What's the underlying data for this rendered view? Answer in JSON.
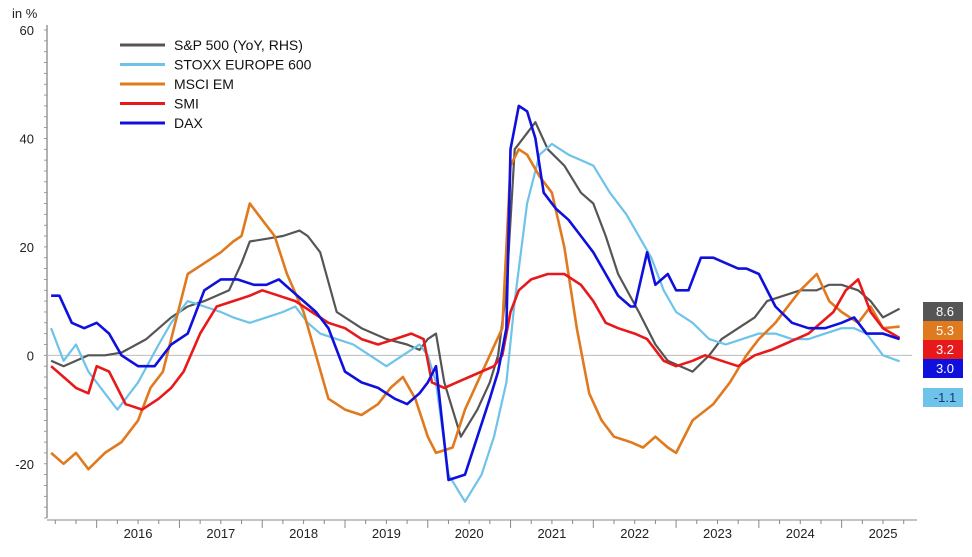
{
  "chart_data": {
    "type": "line",
    "ylabel": "in %",
    "ylim": [
      -30,
      60
    ],
    "yticks": [
      -20,
      0,
      20,
      40,
      60
    ],
    "xlim": [
      2015.4,
      2025.85
    ],
    "year_labels": [
      "2016",
      "2017",
      "2018",
      "2019",
      "2020",
      "2021",
      "2022",
      "2023",
      "2024",
      "2025"
    ],
    "legend_position": "top-left",
    "series": [
      {
        "name": "S&P 500 (YoY, RHS)",
        "color": "#555555",
        "end_label": "8.6",
        "x": [
          2015.45,
          2015.6,
          2015.75,
          2015.9,
          2016.1,
          2016.3,
          2016.6,
          2016.9,
          2017.1,
          2017.3,
          2017.6,
          2017.75,
          2017.85,
          2018.05,
          2018.25,
          2018.45,
          2018.55,
          2018.7,
          2018.9,
          2019.2,
          2019.5,
          2019.75,
          2019.9,
          2020.0,
          2020.1,
          2020.2,
          2020.4,
          2020.6,
          2020.75,
          2020.85,
          2020.95,
          2021.05,
          2021.15,
          2021.3,
          2021.45,
          2021.65,
          2021.85,
          2022.0,
          2022.15,
          2022.3,
          2022.55,
          2022.75,
          2022.9,
          2023.05,
          2023.2,
          2023.4,
          2023.55,
          2023.75,
          2023.95,
          2024.1,
          2024.3,
          2024.5,
          2024.7,
          2024.85,
          2025.0,
          2025.2,
          2025.35,
          2025.5,
          2025.7
        ],
        "y": [
          -1,
          -2,
          -1,
          0,
          0,
          0.5,
          3,
          7,
          9,
          10,
          12,
          17,
          21,
          21.5,
          22,
          23,
          22,
          19,
          8,
          5,
          3,
          2,
          1,
          3,
          4,
          -5,
          -15,
          -10,
          -5,
          0,
          12,
          38,
          40,
          43,
          38,
          35,
          30,
          28,
          22,
          15,
          8,
          2,
          -1,
          -2,
          -3,
          0,
          3,
          5,
          7,
          10,
          11,
          12,
          12,
          13,
          13,
          12,
          10,
          7,
          8.6
        ]
      },
      {
        "name": "STOXX EUROPE 600",
        "color": "#6ec3ea",
        "end_label": "-1.1",
        "x": [
          2015.45,
          2015.6,
          2015.75,
          2015.9,
          2016.1,
          2016.25,
          2016.5,
          2016.75,
          2016.9,
          2017.1,
          2017.3,
          2017.5,
          2017.65,
          2017.85,
          2018.05,
          2018.25,
          2018.4,
          2018.55,
          2018.7,
          2018.9,
          2019.1,
          2019.3,
          2019.5,
          2019.7,
          2019.9,
          2020.0,
          2020.1,
          2020.25,
          2020.45,
          2020.65,
          2020.8,
          2020.95,
          2021.05,
          2021.2,
          2021.35,
          2021.5,
          2021.7,
          2021.85,
          2022.0,
          2022.2,
          2022.4,
          2022.55,
          2022.7,
          2022.85,
          2023.0,
          2023.2,
          2023.4,
          2023.6,
          2023.8,
          2024.0,
          2024.2,
          2024.4,
          2024.6,
          2024.8,
          2025.0,
          2025.15,
          2025.3,
          2025.5,
          2025.7
        ],
        "y": [
          5,
          -1,
          2,
          -3,
          -7,
          -10,
          -5,
          2,
          6,
          10,
          9,
          8,
          7,
          6,
          7,
          8,
          9,
          6,
          4,
          3,
          2,
          0,
          -2,
          0,
          2,
          0,
          -5,
          -22,
          -27,
          -22,
          -15,
          -5,
          10,
          28,
          37,
          39,
          37,
          36,
          35,
          30,
          26,
          22,
          18,
          12,
          8,
          6,
          3,
          2,
          3,
          4,
          4,
          3,
          3,
          4,
          5,
          5,
          4,
          0,
          -1.1
        ]
      },
      {
        "name": "MSCI EM",
        "color": "#e07a1f",
        "end_label": "5.3",
        "x": [
          2015.45,
          2015.6,
          2015.75,
          2015.9,
          2016.1,
          2016.3,
          2016.5,
          2016.65,
          2016.8,
          2016.95,
          2017.1,
          2017.3,
          2017.5,
          2017.65,
          2017.75,
          2017.85,
          2018.0,
          2018.15,
          2018.3,
          2018.5,
          2018.65,
          2018.8,
          2019.0,
          2019.2,
          2019.4,
          2019.55,
          2019.7,
          2019.85,
          2020.0,
          2020.1,
          2020.3,
          2020.45,
          2020.6,
          2020.75,
          2020.9,
          2021.0,
          2021.1,
          2021.2,
          2021.35,
          2021.5,
          2021.65,
          2021.8,
          2021.95,
          2022.1,
          2022.25,
          2022.45,
          2022.6,
          2022.75,
          2022.9,
          2023.0,
          2023.2,
          2023.45,
          2023.65,
          2023.85,
          2024.0,
          2024.2,
          2024.35,
          2024.5,
          2024.7,
          2024.85,
          2025.0,
          2025.2,
          2025.35,
          2025.5,
          2025.7
        ],
        "y": [
          -18,
          -20,
          -18,
          -21,
          -18,
          -16,
          -12,
          -6,
          -3,
          6,
          15,
          17,
          19,
          21,
          22,
          28,
          25,
          22,
          15,
          8,
          0,
          -8,
          -10,
          -11,
          -9,
          -6,
          -4,
          -8,
          -15,
          -18,
          -17,
          -10,
          -5,
          0,
          5,
          35,
          38,
          37,
          33,
          30,
          20,
          5,
          -7,
          -12,
          -15,
          -16,
          -17,
          -15,
          -17,
          -18,
          -12,
          -9,
          -5,
          0,
          3,
          6,
          9,
          12,
          15,
          10,
          8,
          6,
          9,
          5,
          5.3
        ]
      },
      {
        "name": "SMI",
        "color": "#e8191b",
        "end_label": "3.2",
        "x": [
          2015.45,
          2015.6,
          2015.75,
          2015.9,
          2016.0,
          2016.15,
          2016.35,
          2016.55,
          2016.75,
          2016.9,
          2017.05,
          2017.25,
          2017.45,
          2017.65,
          2017.85,
          2018.0,
          2018.2,
          2018.4,
          2018.6,
          2018.8,
          2019.0,
          2019.2,
          2019.4,
          2019.6,
          2019.8,
          2019.95,
          2020.05,
          2020.2,
          2020.35,
          2020.5,
          2020.65,
          2020.8,
          2020.9,
          2021.0,
          2021.1,
          2021.25,
          2021.45,
          2021.65,
          2021.85,
          2022.0,
          2022.15,
          2022.3,
          2022.5,
          2022.65,
          2022.85,
          2023.0,
          2023.2,
          2023.35,
          2023.55,
          2023.75,
          2023.95,
          2024.15,
          2024.3,
          2024.45,
          2024.6,
          2024.75,
          2024.9,
          2025.05,
          2025.2,
          2025.35,
          2025.5,
          2025.7
        ],
        "y": [
          -2,
          -4,
          -6,
          -7,
          -2,
          -3,
          -9,
          -10,
          -8,
          -6,
          -3,
          4,
          9,
          10,
          11,
          12,
          11,
          10,
          8,
          6,
          5,
          3,
          2,
          3,
          4,
          3,
          -5,
          -6,
          -5,
          -4,
          -3,
          -2,
          0,
          8,
          12,
          14,
          15,
          15,
          13,
          10,
          6,
          5,
          4,
          3,
          -1,
          -2,
          -1,
          0,
          -1,
          -2,
          0,
          1,
          2,
          3,
          4,
          6,
          8,
          12,
          14,
          8,
          5,
          3.2
        ]
      },
      {
        "name": "DAX",
        "color": "#1010dd",
        "end_label": "3.0",
        "x": [
          2015.45,
          2015.55,
          2015.7,
          2015.85,
          2016.0,
          2016.15,
          2016.3,
          2016.5,
          2016.7,
          2016.9,
          2017.1,
          2017.3,
          2017.5,
          2017.7,
          2017.9,
          2018.05,
          2018.2,
          2018.35,
          2018.5,
          2018.65,
          2018.8,
          2019.0,
          2019.2,
          2019.4,
          2019.6,
          2019.75,
          2019.9,
          2020.0,
          2020.1,
          2020.25,
          2020.45,
          2020.6,
          2020.75,
          2020.85,
          2020.95,
          2021.0,
          2021.1,
          2021.2,
          2021.3,
          2021.4,
          2021.55,
          2021.7,
          2021.85,
          2022.0,
          2022.15,
          2022.3,
          2022.45,
          2022.5,
          2022.65,
          2022.75,
          2022.9,
          2023.0,
          2023.15,
          2023.3,
          2023.45,
          2023.6,
          2023.75,
          2023.85,
          2024.0,
          2024.2,
          2024.4,
          2024.6,
          2024.8,
          2025.0,
          2025.15,
          2025.3,
          2025.5,
          2025.7
        ],
        "y": [
          11,
          11,
          6,
          5,
          6,
          4,
          0,
          -2,
          -2,
          2,
          4,
          12,
          14,
          14,
          13,
          13,
          14,
          12,
          10,
          8,
          5,
          -3,
          -5,
          -6,
          -8,
          -9,
          -7,
          -5,
          -2,
          -23,
          -22,
          -15,
          -8,
          -3,
          5,
          38,
          46,
          45,
          40,
          30,
          27,
          25,
          22,
          19,
          15,
          11,
          9,
          9,
          19,
          13,
          15,
          12,
          12,
          18,
          18,
          17,
          16,
          16,
          15,
          9,
          6,
          5,
          5,
          6,
          7,
          4,
          4,
          3.0
        ]
      }
    ]
  }
}
